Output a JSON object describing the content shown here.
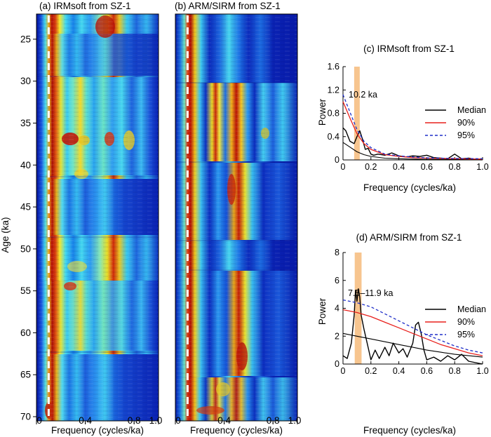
{
  "panels": {
    "a": {
      "title": "(a) IRMsoft from SZ-1",
      "xlabel": "Frequency (cycles/ka)",
      "ylabel": "Age (ka)",
      "xticks": [
        "0",
        "0.4",
        "0.8",
        "1.0"
      ],
      "yticks": [
        "25",
        "30",
        "35",
        "40",
        "45",
        "50",
        "55",
        "60",
        "65",
        "70"
      ]
    },
    "b": {
      "title": "(b) ARM/SIRM from SZ-1",
      "xlabel": "Frequency (cycles/ka)",
      "xticks": [
        "0",
        "0.4",
        "0.8",
        "1.0"
      ]
    },
    "c": {
      "title": "(c) IRMsoft from SZ-1",
      "xlabel": "Frequency (cycles/ka)",
      "ylabel": "Power",
      "annotation": "10.2 ka",
      "xticks": [
        "0",
        "0.2",
        "0.4",
        "0.6",
        "0.8",
        "1.0"
      ],
      "yticks": [
        "0",
        "0.4",
        "0.8",
        "1.2",
        "1.6"
      ],
      "legend": [
        "Median",
        "90%",
        "95%"
      ]
    },
    "d": {
      "title": "(d) ARM/SIRM from SZ-1",
      "xlabel": "Frequency (cycles/ka)",
      "ylabel": "Power",
      "annotation": "7.5–11.9 ka",
      "xticks": [
        "0",
        "0.2",
        "0.4",
        "0.6",
        "0.8",
        "1.0"
      ],
      "yticks": [
        "0",
        "2",
        "4",
        "6",
        "8"
      ],
      "legend": [
        "Median",
        "90%",
        "95%"
      ]
    }
  },
  "colors": {
    "spectrum": "#000000",
    "median": "#000000",
    "ci90": "#e8201c",
    "ci95": "#1f2ec8",
    "band": "#f7c58f",
    "dashed_marker": "#ffffff"
  },
  "chart_data": [
    {
      "type": "heatmap",
      "title": "(a) IRMsoft from SZ-1",
      "xlabel": "Frequency (cycles/ka)",
      "ylabel": "Age (ka)",
      "xlim": [
        0,
        1.0
      ],
      "ylim": [
        70.5,
        22
      ],
      "colormap": "jet",
      "marker_line_x": 0.1,
      "dominant_ridges": [
        {
          "x": 0.1,
          "age_from": 22,
          "age_to": 70,
          "strength": "high"
        },
        {
          "x": 0.6,
          "age_from": 22,
          "age_to": 27,
          "strength": "high"
        },
        {
          "x": 0.3,
          "age_from": 37,
          "age_to": 39,
          "strength": "high"
        }
      ]
    },
    {
      "type": "heatmap",
      "title": "(b) ARM/SIRM from SZ-1",
      "xlabel": "Frequency (cycles/ka)",
      "xlim": [
        0,
        1.0
      ],
      "ylim": [
        70.5,
        22
      ],
      "colormap": "jet",
      "marker_line_x": 0.1,
      "dominant_ridges": [
        {
          "x": 0.1,
          "age_from": 22,
          "age_to": 70,
          "strength": "high"
        },
        {
          "x": 0.5,
          "age_from": 31,
          "age_to": 68,
          "strength": "high"
        }
      ]
    },
    {
      "type": "line",
      "title": "(c) IRMsoft from SZ-1",
      "xlabel": "Frequency (cycles/ka)",
      "ylabel": "Power",
      "xlim": [
        0,
        1.0
      ],
      "ylim": [
        0,
        1.6
      ],
      "band": {
        "x": [
          0.08,
          0.12
        ],
        "label": "10.2 ka"
      },
      "series": [
        {
          "name": "Spectrum",
          "x": [
            0,
            0.02,
            0.05,
            0.08,
            0.1,
            0.12,
            0.14,
            0.16,
            0.18,
            0.2,
            0.22,
            0.25,
            0.3,
            0.35,
            0.4,
            0.45,
            0.5,
            0.55,
            0.6,
            0.65,
            0.7,
            0.75,
            0.8,
            0.85,
            0.9,
            0.95,
            1.0
          ],
          "y": [
            0.55,
            0.5,
            0.32,
            0.28,
            0.4,
            0.5,
            0.35,
            0.18,
            0.2,
            0.1,
            0.08,
            0.1,
            0.08,
            0.12,
            0.07,
            0.05,
            0.07,
            0.06,
            0.08,
            0.04,
            0.03,
            0.02,
            0.1,
            0.02,
            0.03,
            0.01,
            0.02
          ]
        },
        {
          "name": "Median",
          "x": [
            0,
            0.05,
            0.1,
            0.15,
            0.2,
            0.3,
            0.4,
            0.5,
            0.6,
            0.8,
            1.0
          ],
          "y": [
            0.3,
            0.22,
            0.14,
            0.09,
            0.06,
            0.03,
            0.02,
            0.015,
            0.01,
            0.008,
            0.005
          ]
        },
        {
          "name": "90%",
          "x": [
            0,
            0.05,
            0.1,
            0.15,
            0.2,
            0.3,
            0.4,
            0.5,
            0.6,
            0.8,
            1.0
          ],
          "y": [
            1.0,
            0.72,
            0.45,
            0.28,
            0.18,
            0.09,
            0.06,
            0.04,
            0.03,
            0.02,
            0.015
          ]
        },
        {
          "name": "95%",
          "x": [
            0,
            0.05,
            0.1,
            0.15,
            0.2,
            0.3,
            0.4,
            0.5,
            0.6,
            0.8,
            1.0
          ],
          "y": [
            1.12,
            0.82,
            0.52,
            0.32,
            0.21,
            0.1,
            0.07,
            0.05,
            0.035,
            0.025,
            0.02
          ]
        }
      ]
    },
    {
      "type": "line",
      "title": "(d) ARM/SIRM from SZ-1",
      "xlabel": "Frequency (cycles/ka)",
      "ylabel": "Power",
      "xlim": [
        0,
        1.0
      ],
      "ylim": [
        0,
        8
      ],
      "band": {
        "x": [
          0.084,
          0.133
        ],
        "label": "7.5–11.9 ka"
      },
      "series": [
        {
          "name": "Spectrum",
          "x": [
            0,
            0.03,
            0.06,
            0.08,
            0.09,
            0.1,
            0.11,
            0.12,
            0.13,
            0.15,
            0.18,
            0.2,
            0.23,
            0.26,
            0.3,
            0.33,
            0.36,
            0.4,
            0.43,
            0.46,
            0.5,
            0.52,
            0.54,
            0.56,
            0.58,
            0.6,
            0.65,
            0.7,
            0.75,
            0.8,
            0.85,
            0.9,
            0.95,
            1.0
          ],
          "y": [
            0.6,
            0.4,
            1.5,
            3.5,
            5.3,
            4.5,
            5.4,
            4.8,
            3.5,
            2.5,
            1.2,
            0.3,
            1.0,
            0.4,
            1.2,
            0.6,
            1.5,
            0.8,
            1.1,
            0.5,
            1.5,
            2.8,
            3.0,
            2.2,
            1.0,
            0.3,
            0.5,
            0.2,
            0.6,
            0.3,
            0.7,
            0.2,
            0.1,
            0.0
          ]
        },
        {
          "name": "Median",
          "x": [
            0,
            0.1,
            0.2,
            0.3,
            0.4,
            0.5,
            0.6,
            0.7,
            0.8,
            0.9,
            1.0
          ],
          "y": [
            2.2,
            2.0,
            1.8,
            1.6,
            1.4,
            1.2,
            1.0,
            0.85,
            0.7,
            0.6,
            0.5
          ]
        },
        {
          "name": "90%",
          "x": [
            0,
            0.1,
            0.2,
            0.3,
            0.4,
            0.5,
            0.6,
            0.7,
            0.8,
            0.9,
            1.0
          ],
          "y": [
            3.9,
            3.7,
            3.4,
            3.0,
            2.6,
            2.2,
            1.8,
            1.4,
            1.1,
            0.8,
            0.6
          ]
        },
        {
          "name": "95%",
          "x": [
            0,
            0.1,
            0.2,
            0.3,
            0.4,
            0.5,
            0.6,
            0.7,
            0.8,
            0.9,
            1.0
          ],
          "y": [
            4.6,
            4.4,
            4.1,
            3.6,
            3.1,
            2.6,
            2.1,
            1.7,
            1.3,
            1.0,
            0.8
          ]
        }
      ]
    }
  ]
}
